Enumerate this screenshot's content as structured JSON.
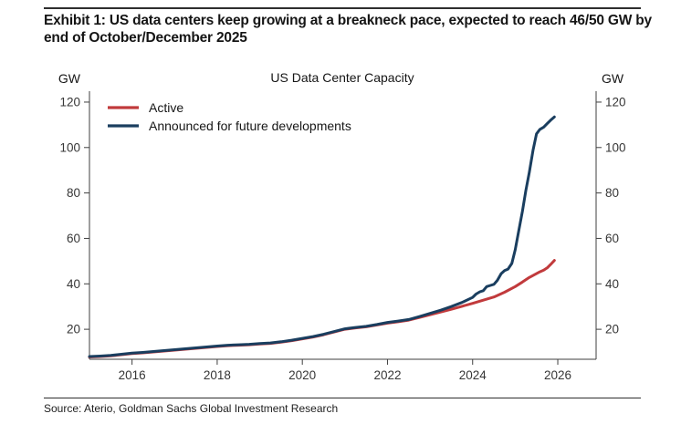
{
  "page": {
    "exhibit_title_line1": "Exhibit 1: US data centers keep growing at a breakneck pace, expected to reach 46/50 GW by",
    "exhibit_title_line2": "end of October/December 2025",
    "source": "Source: Aterio, Goldman Sachs Global Investment Research"
  },
  "chart_data": {
    "type": "line",
    "title": "US Data Center Capacity",
    "y_axis_label_left": "GW",
    "y_axis_label_right": "GW",
    "xlabel": "",
    "ylabel": "GW",
    "grid": false,
    "legend_position": "top-left-inside",
    "xlim": [
      2015.0,
      2026.9
    ],
    "ylim": [
      6.8,
      124.8
    ],
    "xticks": [
      2016,
      2018,
      2020,
      2022,
      2024,
      2026
    ],
    "yticks": [
      20,
      40,
      60,
      80,
      100,
      120
    ],
    "colors": {
      "active": "#c13a3c",
      "announced": "#1a3e5f"
    },
    "series": [
      {
        "name": "Active",
        "color_key": "active",
        "x": [
          2015.0,
          2015.25,
          2015.5,
          2015.75,
          2016.0,
          2016.25,
          2016.5,
          2016.75,
          2017.0,
          2017.25,
          2017.5,
          2017.75,
          2018.0,
          2018.25,
          2018.5,
          2018.75,
          2019.0,
          2019.25,
          2019.5,
          2019.75,
          2020.0,
          2020.25,
          2020.5,
          2020.75,
          2021.0,
          2021.25,
          2021.5,
          2021.75,
          2022.0,
          2022.25,
          2022.5,
          2022.75,
          2023.0,
          2023.25,
          2023.5,
          2023.75,
          2024.0,
          2024.25,
          2024.5,
          2024.75,
          2025.0,
          2025.17,
          2025.33,
          2025.5,
          2025.58,
          2025.67,
          2025.75,
          2025.83,
          2025.92
        ],
        "values": [
          7.8,
          8.0,
          8.3,
          8.8,
          9.3,
          9.6,
          10.0,
          10.4,
          10.8,
          11.2,
          11.6,
          12.0,
          12.4,
          12.8,
          13.0,
          13.2,
          13.5,
          13.8,
          14.3,
          15.0,
          15.8,
          16.6,
          17.6,
          18.8,
          20.0,
          20.6,
          21.1,
          21.9,
          22.7,
          23.3,
          24.0,
          25.2,
          26.4,
          27.6,
          28.8,
          30.1,
          31.4,
          32.8,
          34.2,
          36.3,
          38.8,
          40.8,
          42.8,
          44.5,
          45.3,
          46.0,
          47.0,
          48.5,
          50.3
        ]
      },
      {
        "name": "Announced for future developments",
        "color_key": "announced",
        "x": [
          2015.0,
          2015.25,
          2015.5,
          2015.75,
          2016.0,
          2016.25,
          2016.5,
          2016.75,
          2017.0,
          2017.25,
          2017.5,
          2017.75,
          2018.0,
          2018.25,
          2018.5,
          2018.75,
          2019.0,
          2019.25,
          2019.5,
          2019.75,
          2020.0,
          2020.25,
          2020.5,
          2020.75,
          2021.0,
          2021.25,
          2021.5,
          2021.75,
          2022.0,
          2022.25,
          2022.5,
          2022.75,
          2023.0,
          2023.25,
          2023.5,
          2023.75,
          2024.0,
          2024.08,
          2024.17,
          2024.25,
          2024.33,
          2024.42,
          2024.5,
          2024.58,
          2024.67,
          2024.75,
          2024.83,
          2024.92,
          2025.0,
          2025.08,
          2025.17,
          2025.25,
          2025.33,
          2025.42,
          2025.5,
          2025.58,
          2025.67,
          2025.75,
          2025.83,
          2025.92
        ],
        "values": [
          8.0,
          8.2,
          8.5,
          9.0,
          9.5,
          9.8,
          10.2,
          10.6,
          11.0,
          11.4,
          11.8,
          12.2,
          12.6,
          13.0,
          13.2,
          13.4,
          13.7,
          14.0,
          14.5,
          15.2,
          16.0,
          16.8,
          17.8,
          19.0,
          20.2,
          20.8,
          21.3,
          22.1,
          23.0,
          23.6,
          24.3,
          25.6,
          27.0,
          28.4,
          30.0,
          31.8,
          34.0,
          35.5,
          36.5,
          37.0,
          38.8,
          39.3,
          39.8,
          41.5,
          44.5,
          45.8,
          46.5,
          49.0,
          55.0,
          63.0,
          72.0,
          81.0,
          89.0,
          99.0,
          106.0,
          108.0,
          109.0,
          110.5,
          112.0,
          113.5
        ]
      }
    ]
  }
}
